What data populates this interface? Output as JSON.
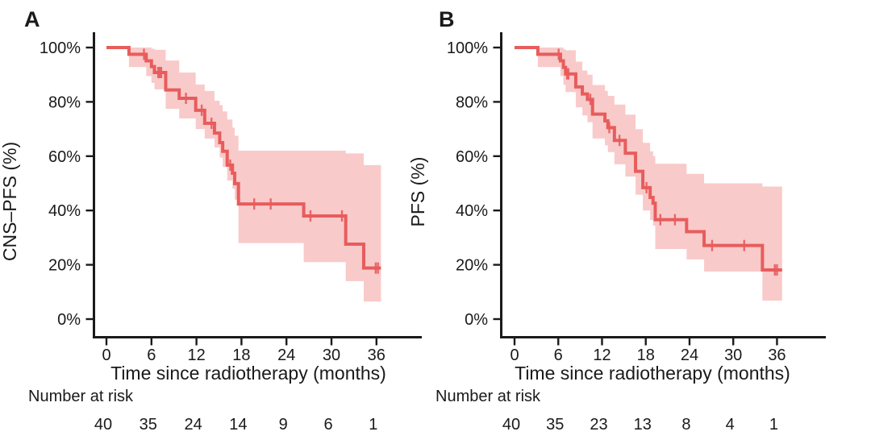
{
  "figure": {
    "kind": "kaplan-meier-survival-figure",
    "background": "#ffffff",
    "colors": {
      "curve": "#e85c5c",
      "ci_band": "#f9caca",
      "axis": "#1a1a1a",
      "text": "#1a1a1a"
    }
  },
  "chart_data": [
    {
      "type": "line",
      "subtype": "kaplan-meier-step",
      "panel_label": "A",
      "ylabel": "CNS–PFS (%)",
      "xlabel": "Time since radiotherapy (months)",
      "x_ticks": [
        0,
        6,
        12,
        18,
        24,
        30,
        36
      ],
      "y_tick_values": [
        0,
        20,
        40,
        60,
        80,
        100
      ],
      "y_tick_labels": [
        "0%",
        "20%",
        "40%",
        "60%",
        "80%",
        "100%"
      ],
      "xlim": [
        0,
        42
      ],
      "ylim": [
        0,
        100
      ],
      "grid": false,
      "legend": "none",
      "risk_label": "Number at risk",
      "number_at_risk": [
        40,
        35,
        24,
        14,
        9,
        6,
        1
      ],
      "end_time": 36.6,
      "survival_steps": [
        [
          0,
          100,
          null,
          null
        ],
        [
          3.0,
          97.5,
          92.8,
          100
        ],
        [
          5.3,
          95.1,
          89.5,
          100
        ],
        [
          6.0,
          93.0,
          87.0,
          99.6
        ],
        [
          6.4,
          90.8,
          84.6,
          99.2
        ],
        [
          7.9,
          84.4,
          77.4,
          95.2
        ],
        [
          9.7,
          81.3,
          73.9,
          90.8
        ],
        [
          11.9,
          76.9,
          70.0,
          86.4
        ],
        [
          13.1,
          72.1,
          66.5,
          84.0
        ],
        [
          14.4,
          68.5,
          63.2,
          80.4
        ],
        [
          15.1,
          65.0,
          59.5,
          78.8
        ],
        [
          15.5,
          61.8,
          56.0,
          76.5
        ],
        [
          16.1,
          56.7,
          51.0,
          73.5
        ],
        [
          16.8,
          53.7,
          48.0,
          70.5
        ],
        [
          17.1,
          49.9,
          44.0,
          67.5
        ],
        [
          17.6,
          42.4,
          28.0,
          62.0
        ],
        [
          26.3,
          38.0,
          21.0,
          62.0
        ],
        [
          31.9,
          27.6,
          14.0,
          61.0
        ],
        [
          34.3,
          18.8,
          6.5,
          56.7
        ]
      ],
      "censor_marks": [
        [
          5.0,
          97.5
        ],
        [
          6.9,
          90.8
        ],
        [
          7.1,
          90.8
        ],
        [
          7.3,
          90.8
        ],
        [
          10.6,
          81.3
        ],
        [
          12.7,
          76.9
        ],
        [
          14.0,
          72.1
        ],
        [
          16.5,
          56.7
        ],
        [
          19.7,
          42.4
        ],
        [
          21.9,
          42.4
        ],
        [
          27.2,
          38.0
        ],
        [
          31.4,
          38.0
        ],
        [
          35.9,
          18.8
        ],
        [
          36.2,
          18.8
        ]
      ]
    },
    {
      "type": "line",
      "subtype": "kaplan-meier-step",
      "panel_label": "B",
      "ylabel": "PFS (%)",
      "xlabel": "Time since radiotherapy (months)",
      "x_ticks": [
        0,
        6,
        12,
        18,
        24,
        30,
        36
      ],
      "y_tick_values": [
        0,
        20,
        40,
        60,
        80,
        100
      ],
      "y_tick_labels": [
        "0%",
        "20%",
        "40%",
        "60%",
        "80%",
        "100%"
      ],
      "xlim": [
        0,
        42
      ],
      "ylim": [
        0,
        100
      ],
      "grid": false,
      "legend": "none",
      "risk_label": "Number at risk",
      "number_at_risk": [
        40,
        35,
        23,
        13,
        8,
        4,
        1
      ],
      "end_time": 36.7,
      "survival_steps": [
        [
          0,
          100,
          null,
          null
        ],
        [
          3.2,
          97.5,
          92.8,
          100
        ],
        [
          6.3,
          95.1,
          89.5,
          100
        ],
        [
          6.7,
          92.7,
          86.3,
          99.4
        ],
        [
          7.0,
          90.3,
          83.6,
          99.0
        ],
        [
          8.4,
          85.5,
          78.0,
          94.8
        ],
        [
          9.3,
          82.9,
          75.0,
          91.5
        ],
        [
          10.0,
          80.9,
          72.5,
          90.0
        ],
        [
          10.7,
          75.5,
          66.5,
          86.2
        ],
        [
          12.4,
          73.0,
          64.0,
          84.0
        ],
        [
          12.8,
          70.5,
          61.5,
          82.2
        ],
        [
          13.7,
          65.8,
          57.0,
          79.0
        ],
        [
          15.2,
          61.1,
          52.5,
          75.3
        ],
        [
          16.6,
          54.4,
          45.8,
          69.9
        ],
        [
          17.6,
          48.4,
          40.0,
          64.9
        ],
        [
          18.6,
          44.8,
          36.5,
          61.8
        ],
        [
          19.0,
          42.7,
          34.4,
          60.0
        ],
        [
          19.3,
          36.6,
          25.8,
          57.2
        ],
        [
          23.6,
          32.2,
          22.0,
          53.5
        ],
        [
          26.0,
          27.1,
          17.5,
          50.0
        ],
        [
          34.0,
          18.1,
          6.8,
          48.8
        ]
      ],
      "censor_marks": [
        [
          6.05,
          97.5
        ],
        [
          7.2,
          90.3
        ],
        [
          7.4,
          90.3
        ],
        [
          10.4,
          80.9
        ],
        [
          13.0,
          70.5
        ],
        [
          14.4,
          65.8
        ],
        [
          18.1,
          48.4
        ],
        [
          20.0,
          36.6
        ],
        [
          22.0,
          36.6
        ],
        [
          27.1,
          27.1
        ],
        [
          31.5,
          27.1
        ],
        [
          35.7,
          18.1
        ],
        [
          36.0,
          18.1
        ]
      ]
    }
  ]
}
